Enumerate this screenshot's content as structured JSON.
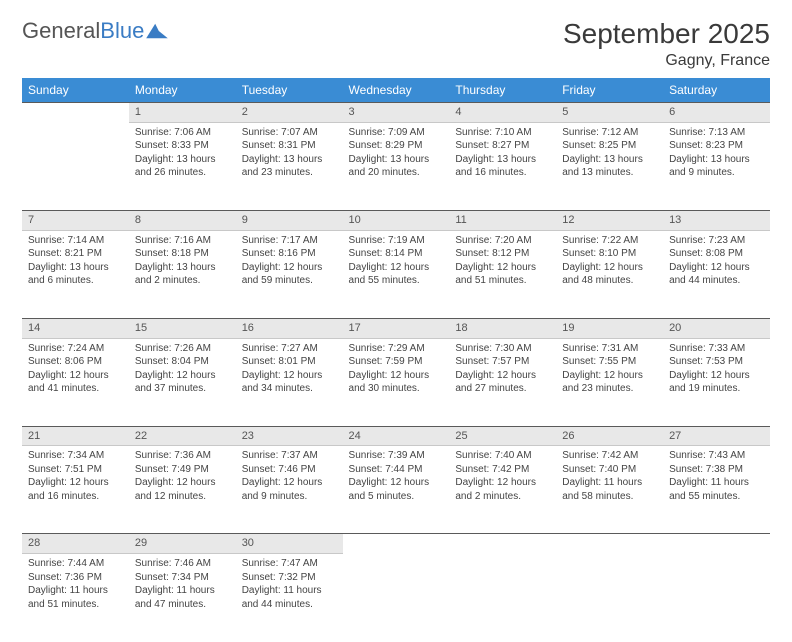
{
  "logo": {
    "text1": "General",
    "text2": "Blue"
  },
  "title": "September 2025",
  "location": "Gagny, France",
  "dayHeaders": [
    "Sunday",
    "Monday",
    "Tuesday",
    "Wednesday",
    "Thursday",
    "Friday",
    "Saturday"
  ],
  "colors": {
    "headerBg": "#3a8cd4",
    "dayBarBg": "#e8e8e8",
    "dayBarBorder": "#5a5a5a",
    "logoBlue": "#3a7cc4"
  },
  "weeks": [
    [
      null,
      {
        "n": "1",
        "sunrise": "7:06 AM",
        "sunset": "8:33 PM",
        "daylight": "13 hours and 26 minutes."
      },
      {
        "n": "2",
        "sunrise": "7:07 AM",
        "sunset": "8:31 PM",
        "daylight": "13 hours and 23 minutes."
      },
      {
        "n": "3",
        "sunrise": "7:09 AM",
        "sunset": "8:29 PM",
        "daylight": "13 hours and 20 minutes."
      },
      {
        "n": "4",
        "sunrise": "7:10 AM",
        "sunset": "8:27 PM",
        "daylight": "13 hours and 16 minutes."
      },
      {
        "n": "5",
        "sunrise": "7:12 AM",
        "sunset": "8:25 PM",
        "daylight": "13 hours and 13 minutes."
      },
      {
        "n": "6",
        "sunrise": "7:13 AM",
        "sunset": "8:23 PM",
        "daylight": "13 hours and 9 minutes."
      }
    ],
    [
      {
        "n": "7",
        "sunrise": "7:14 AM",
        "sunset": "8:21 PM",
        "daylight": "13 hours and 6 minutes."
      },
      {
        "n": "8",
        "sunrise": "7:16 AM",
        "sunset": "8:18 PM",
        "daylight": "13 hours and 2 minutes."
      },
      {
        "n": "9",
        "sunrise": "7:17 AM",
        "sunset": "8:16 PM",
        "daylight": "12 hours and 59 minutes."
      },
      {
        "n": "10",
        "sunrise": "7:19 AM",
        "sunset": "8:14 PM",
        "daylight": "12 hours and 55 minutes."
      },
      {
        "n": "11",
        "sunrise": "7:20 AM",
        "sunset": "8:12 PM",
        "daylight": "12 hours and 51 minutes."
      },
      {
        "n": "12",
        "sunrise": "7:22 AM",
        "sunset": "8:10 PM",
        "daylight": "12 hours and 48 minutes."
      },
      {
        "n": "13",
        "sunrise": "7:23 AM",
        "sunset": "8:08 PM",
        "daylight": "12 hours and 44 minutes."
      }
    ],
    [
      {
        "n": "14",
        "sunrise": "7:24 AM",
        "sunset": "8:06 PM",
        "daylight": "12 hours and 41 minutes."
      },
      {
        "n": "15",
        "sunrise": "7:26 AM",
        "sunset": "8:04 PM",
        "daylight": "12 hours and 37 minutes."
      },
      {
        "n": "16",
        "sunrise": "7:27 AM",
        "sunset": "8:01 PM",
        "daylight": "12 hours and 34 minutes."
      },
      {
        "n": "17",
        "sunrise": "7:29 AM",
        "sunset": "7:59 PM",
        "daylight": "12 hours and 30 minutes."
      },
      {
        "n": "18",
        "sunrise": "7:30 AM",
        "sunset": "7:57 PM",
        "daylight": "12 hours and 27 minutes."
      },
      {
        "n": "19",
        "sunrise": "7:31 AM",
        "sunset": "7:55 PM",
        "daylight": "12 hours and 23 minutes."
      },
      {
        "n": "20",
        "sunrise": "7:33 AM",
        "sunset": "7:53 PM",
        "daylight": "12 hours and 19 minutes."
      }
    ],
    [
      {
        "n": "21",
        "sunrise": "7:34 AM",
        "sunset": "7:51 PM",
        "daylight": "12 hours and 16 minutes."
      },
      {
        "n": "22",
        "sunrise": "7:36 AM",
        "sunset": "7:49 PM",
        "daylight": "12 hours and 12 minutes."
      },
      {
        "n": "23",
        "sunrise": "7:37 AM",
        "sunset": "7:46 PM",
        "daylight": "12 hours and 9 minutes."
      },
      {
        "n": "24",
        "sunrise": "7:39 AM",
        "sunset": "7:44 PM",
        "daylight": "12 hours and 5 minutes."
      },
      {
        "n": "25",
        "sunrise": "7:40 AM",
        "sunset": "7:42 PM",
        "daylight": "12 hours and 2 minutes."
      },
      {
        "n": "26",
        "sunrise": "7:42 AM",
        "sunset": "7:40 PM",
        "daylight": "11 hours and 58 minutes."
      },
      {
        "n": "27",
        "sunrise": "7:43 AM",
        "sunset": "7:38 PM",
        "daylight": "11 hours and 55 minutes."
      }
    ],
    [
      {
        "n": "28",
        "sunrise": "7:44 AM",
        "sunset": "7:36 PM",
        "daylight": "11 hours and 51 minutes."
      },
      {
        "n": "29",
        "sunrise": "7:46 AM",
        "sunset": "7:34 PM",
        "daylight": "11 hours and 47 minutes."
      },
      {
        "n": "30",
        "sunrise": "7:47 AM",
        "sunset": "7:32 PM",
        "daylight": "11 hours and 44 minutes."
      },
      null,
      null,
      null,
      null
    ]
  ],
  "labels": {
    "sunrise": "Sunrise:",
    "sunset": "Sunset:",
    "daylight": "Daylight:"
  }
}
